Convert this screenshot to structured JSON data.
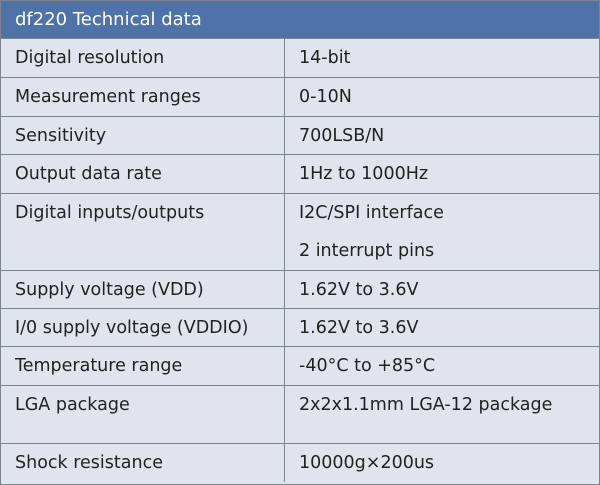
{
  "header": {
    "title": "df220 Technical data"
  },
  "table": {
    "rows": [
      [
        "Digital resolution",
        "14-bit"
      ],
      [
        "Measurement ranges",
        "0-10N"
      ],
      [
        "Sensitivity",
        "700LSB/N"
      ],
      [
        "Output data rate",
        "1Hz to 1000Hz"
      ],
      [
        "Digital inputs/outputs",
        "I2C/SPI interface",
        "2 interrupt pins"
      ],
      [
        "Supply voltage (VDD)",
        "1.62V to 3.6V"
      ],
      [
        "I/0 supply voltage (VDDIO)",
        "1.62V to 3.6V"
      ],
      [
        "Temperature range",
        "-40°C to +85°C"
      ],
      [
        "LGA package",
        "2x2x1.1mm LGA-12 package"
      ],
      [
        "Shock resistance",
        "10000g×200us"
      ]
    ]
  }
}
